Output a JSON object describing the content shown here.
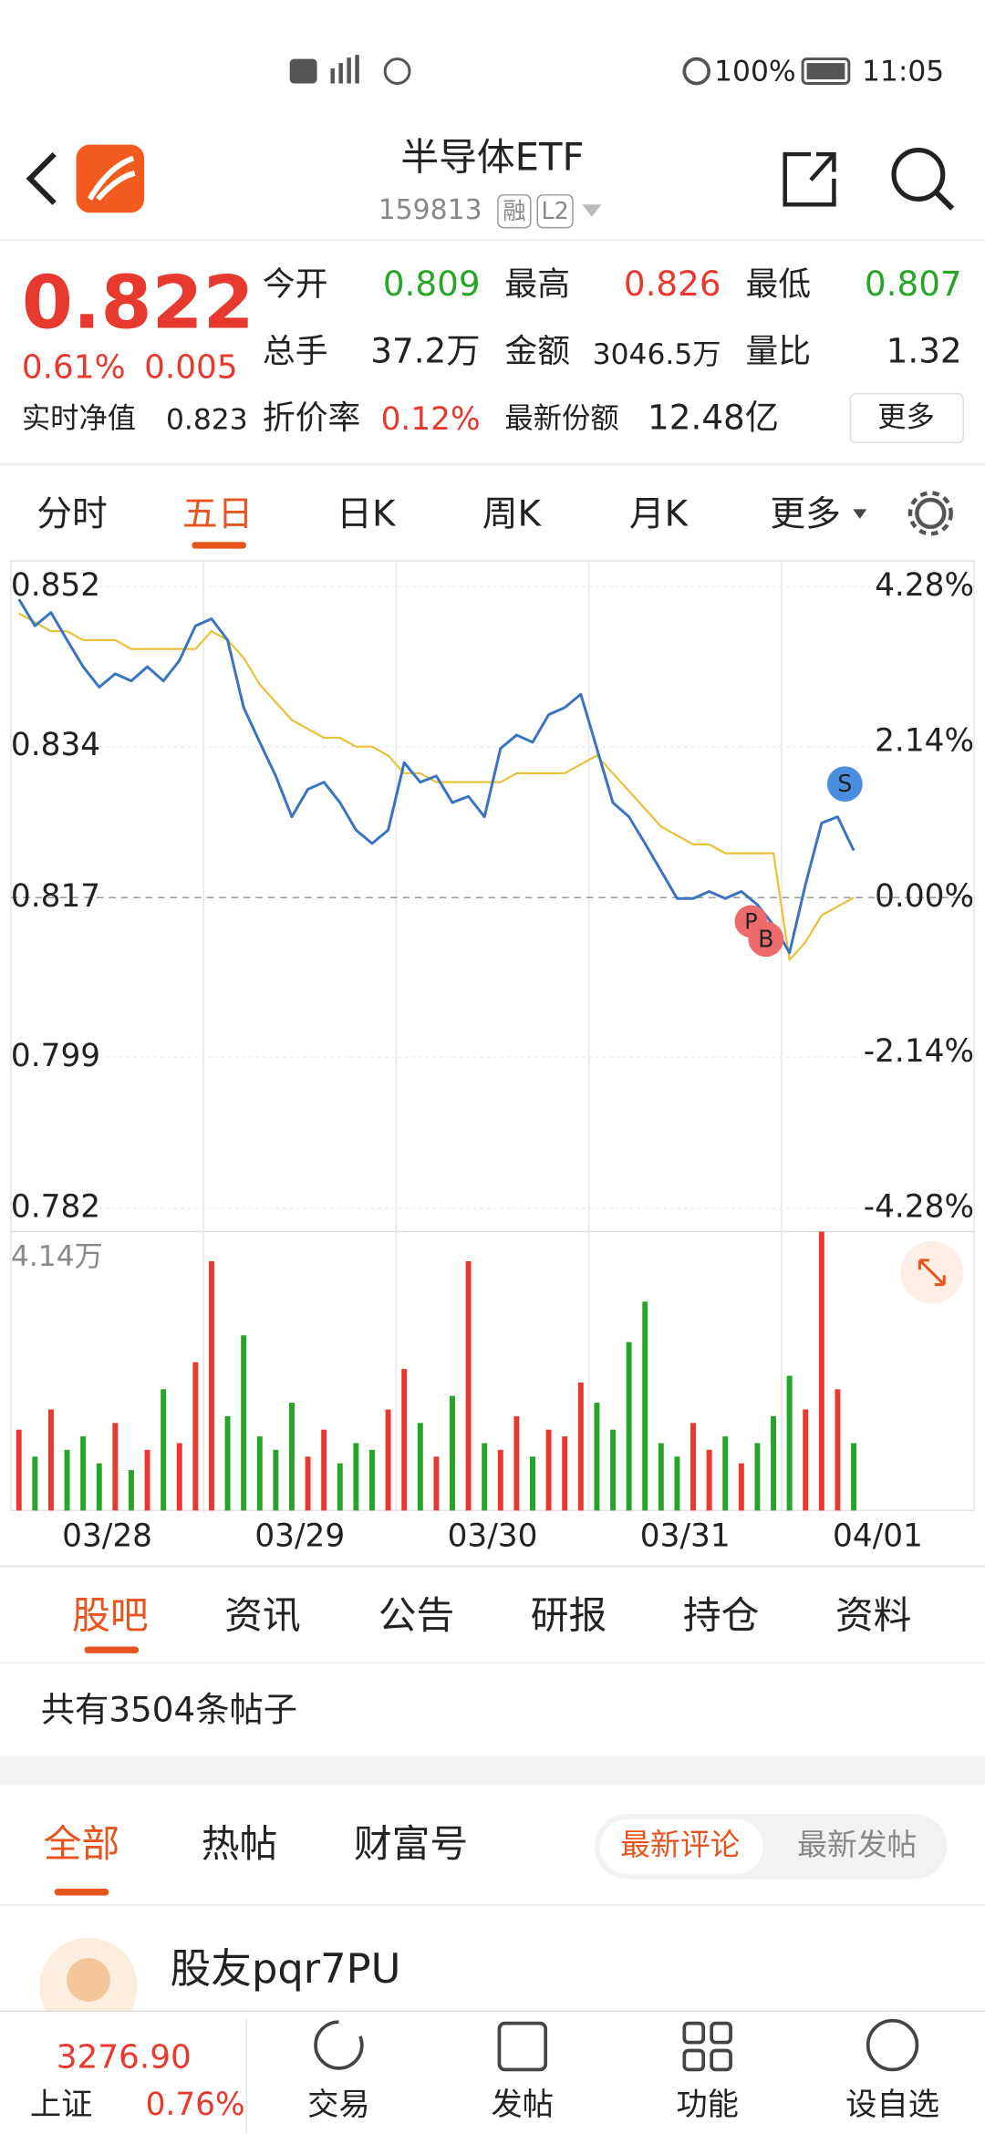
{
  "status_bar": {
    "battery": "100%",
    "time": "11:05"
  },
  "header": {
    "title": "半导体ETF",
    "code": "159813",
    "tags": [
      "融",
      "L2"
    ]
  },
  "quote": {
    "price": "0.822",
    "change_pct": "0.61%",
    "change": "0.005",
    "nav_label": "实时净值",
    "nav": "0.823",
    "stats": [
      {
        "label": "今开",
        "value": "0.809"
      },
      {
        "label": "最高",
        "value": "0.826"
      },
      {
        "label": "最低",
        "value": "0.807"
      },
      {
        "label": "总手",
        "value": "37.2万"
      },
      {
        "label": "金额",
        "value": "3046.5万"
      },
      {
        "label": "量比",
        "value": "1.32"
      },
      {
        "label": "折价率",
        "value": "0.12%"
      },
      {
        "label": "最新份额",
        "value": "12.48亿"
      }
    ],
    "more_button": "更多"
  },
  "chart_tabs": [
    "分时",
    "五日",
    "日K",
    "周K",
    "月K",
    "更多"
  ],
  "chart": {
    "type": "line",
    "categories": [
      "03/28",
      "03/29",
      "03/30",
      "03/31",
      "04/01"
    ],
    "ylim": [
      0.782,
      0.852
    ],
    "yticks": [
      0.852,
      0.834,
      0.817,
      0.799,
      0.782
    ],
    "y2lim": [
      -4.28,
      4.28
    ],
    "y2ticks": [
      {
        "value": 4.28,
        "label": "4.28%"
      },
      {
        "value": 2.14,
        "label": "2.14%"
      },
      {
        "value": 0,
        "label": "0.00%"
      },
      {
        "value": -2.14,
        "label": "-2.14%"
      },
      {
        "value": -4.28,
        "label": "-4.28%"
      }
    ],
    "series": [
      {
        "color": "#3a73c2",
        "values": [
          0.8506,
          0.8476,
          0.8491,
          0.846,
          0.843,
          0.8407,
          0.8422,
          0.8414,
          0.843,
          0.8414,
          0.8437,
          0.8476,
          0.8484,
          0.846,
          0.8384,
          0.8345,
          0.8307,
          0.8261,
          0.8292,
          0.83,
          0.8277,
          0.8246,
          0.8231,
          0.8246,
          0.8322,
          0.83,
          0.8307,
          0.8277,
          0.8284,
          0.8261,
          0.8338,
          0.8353,
          0.8345,
          0.8376,
          0.8384,
          0.8399,
          0.8338,
          0.8277,
          0.8261,
          0.8231,
          0.82,
          0.8169,
          0.8169,
          0.8177,
          0.8169,
          0.8177,
          0.8162,
          0.8139,
          0.8108,
          0.8185,
          0.8254,
          0.8261,
          0.8223
        ]
      },
      {
        "color": "#e8c23a",
        "values": [
          0.849,
          0.848,
          0.847,
          0.847,
          0.846,
          0.846,
          0.846,
          0.845,
          0.845,
          0.845,
          0.845,
          0.845,
          0.847,
          0.846,
          0.844,
          0.841,
          0.839,
          0.837,
          0.836,
          0.835,
          0.835,
          0.834,
          0.834,
          0.833,
          0.831,
          0.831,
          0.83,
          0.83,
          0.83,
          0.83,
          0.83,
          0.831,
          0.831,
          0.831,
          0.831,
          0.832,
          0.833,
          0.831,
          0.829,
          0.827,
          0.825,
          0.824,
          0.823,
          0.823,
          0.822,
          0.822,
          0.822,
          0.822,
          0.81,
          0.812,
          0.815,
          0.816,
          0.817
        ]
      }
    ],
    "volume": {
      "ylim": [
        0,
        4.14
      ],
      "top_label": "4.14万",
      "up_color": "#e8392e",
      "down_color": "#27a527",
      "values": [
        1.2,
        0.8,
        1.5,
        0.9,
        1.1,
        0.7,
        1.3,
        0.6,
        0.9,
        1.8,
        1.0,
        2.2,
        3.7,
        1.4,
        2.6,
        1.1,
        0.9,
        1.6,
        0.8,
        1.2,
        0.7,
        1.0,
        0.9,
        1.5,
        2.1,
        1.3,
        0.8,
        1.7,
        3.7,
        1.0,
        0.9,
        1.4,
        0.8,
        1.2,
        1.1,
        1.9,
        1.6,
        1.2,
        2.5,
        3.1,
        1.0,
        0.8,
        1.3,
        0.9,
        1.1,
        0.7,
        1.0,
        1.4,
        2.0,
        1.5,
        4.14,
        1.8,
        1.0
      ]
    },
    "markers": [
      "S",
      "P",
      "B"
    ]
  },
  "section_tabs": [
    "股吧",
    "资讯",
    "公告",
    "研报",
    "持仓",
    "资料"
  ],
  "post_count": "共有3504条帖子",
  "filters": [
    "全部",
    "热帖",
    "财富号"
  ],
  "sort_options": [
    "最新评论",
    "最新发帖"
  ],
  "post": {
    "user": "股友pqr7PU"
  },
  "bottom_bar": {
    "index": {
      "value": "3276.90",
      "name": "上证",
      "change": "0.76%"
    },
    "items": [
      "交易",
      "发帖",
      "功能",
      "设自选"
    ]
  }
}
